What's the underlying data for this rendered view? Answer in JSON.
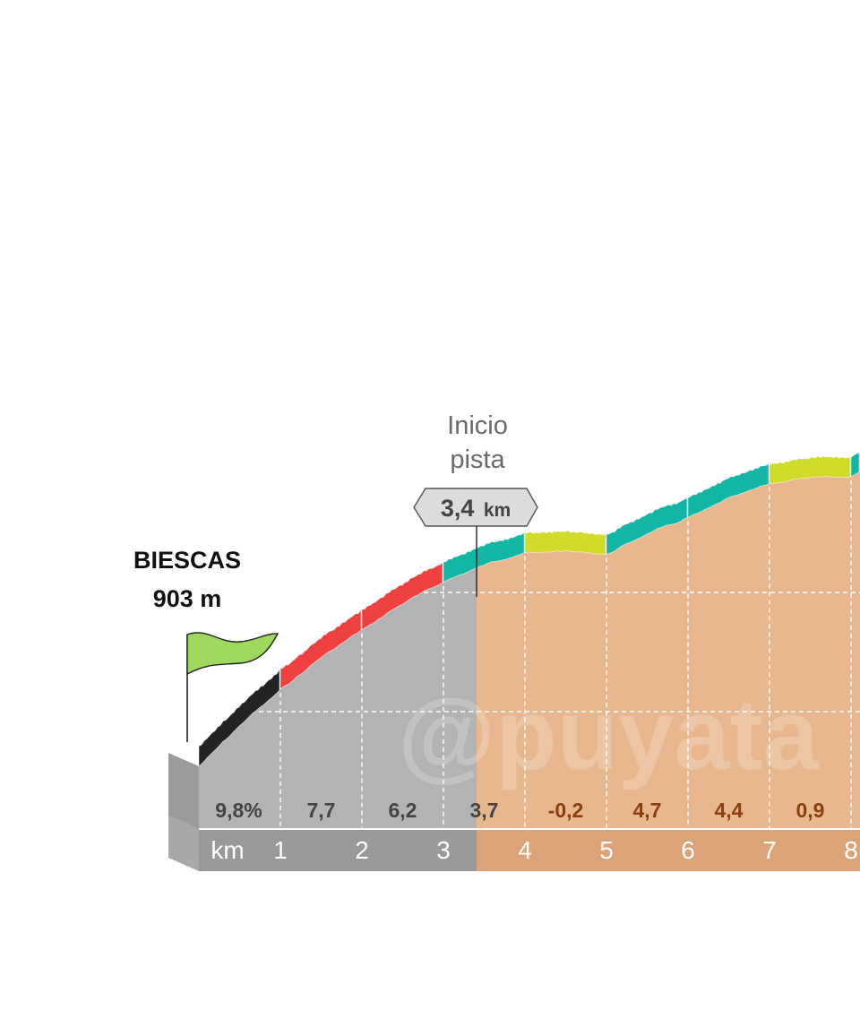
{
  "start": {
    "town": "BIESCAS",
    "altitude": "903 m"
  },
  "marker": {
    "line1": "Inicio",
    "line2": "pista",
    "value": "3,4",
    "unit": "km"
  },
  "watermark": "@puyata",
  "colors": {
    "paved_side": "#b3b3b3",
    "track_side": "#e8b78e",
    "km_band_paved": "#999999",
    "km_band_track": "#dda378",
    "base_face": "#9b9b9b",
    "black": "#232323",
    "red": "#ef4040",
    "teal": "#13b5a5",
    "lime": "#cfdc2a",
    "flag": "#9ed85c",
    "grade_paved": "#444444",
    "grade_track": "#8a3f12"
  },
  "chart_data": {
    "type": "area",
    "title": "",
    "x_unit": "km",
    "x_tick_labels": [
      "1",
      "2",
      "3",
      "4",
      "5",
      "6",
      "7",
      "8"
    ],
    "start_altitude_m": 903,
    "track_start_km": 3.4,
    "segments": [
      {
        "km_from": 0,
        "km_to": 1,
        "grade_label": "9,8%",
        "grade": 9.8,
        "color": "black",
        "surface": "paved"
      },
      {
        "km_from": 1,
        "km_to": 2,
        "grade_label": "7,7",
        "grade": 7.7,
        "color": "red",
        "surface": "paved"
      },
      {
        "km_from": 2,
        "km_to": 3,
        "grade_label": "6,2",
        "grade": 6.2,
        "color": "red",
        "surface": "paved"
      },
      {
        "km_from": 3,
        "km_to": 4,
        "grade_label": "3,7",
        "grade": 3.7,
        "color": "teal",
        "surface": "mixed"
      },
      {
        "km_from": 4,
        "km_to": 5,
        "grade_label": "-0,2",
        "grade": -0.2,
        "color": "lime",
        "surface": "track"
      },
      {
        "km_from": 5,
        "km_to": 6,
        "grade_label": "4,7",
        "grade": 4.7,
        "color": "teal",
        "surface": "track"
      },
      {
        "km_from": 6,
        "km_to": 7,
        "grade_label": "4,4",
        "grade": 4.4,
        "color": "teal",
        "surface": "track"
      },
      {
        "km_from": 7,
        "km_to": 8,
        "grade_label": "0,9",
        "grade": 0.9,
        "color": "lime",
        "surface": "track"
      },
      {
        "km_from": 8,
        "km_to": 8.5,
        "grade_label": "",
        "grade": 4.5,
        "color": "teal",
        "surface": "track"
      }
    ],
    "grid": true
  }
}
